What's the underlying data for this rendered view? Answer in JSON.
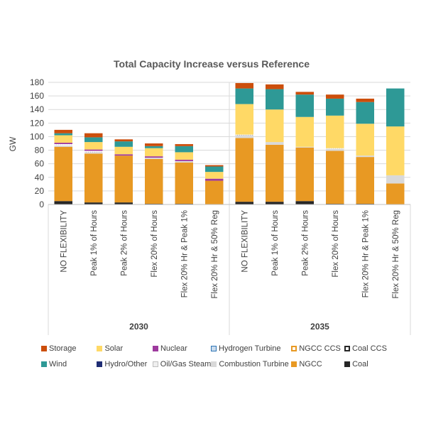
{
  "chart_data": {
    "type": "bar",
    "stacked": true,
    "title": "Total Capacity Increase versus Reference",
    "xlabel": "",
    "ylabel": "GW",
    "ylim": [
      0,
      180
    ],
    "yticks": [
      0,
      20,
      40,
      60,
      80,
      100,
      120,
      140,
      160,
      180
    ],
    "grid": true,
    "legend_position": "bottom",
    "groups": [
      {
        "label": "2030",
        "categories": [
          "NO FLEXIBILITY",
          "Peak 1% of Hours",
          "Peak 2% of Hours",
          "Flex 20% of Hours",
          "Flex 20% Hr & Peak 1%",
          "Flex 20% Hr & 50% Reg"
        ]
      },
      {
        "label": "2035",
        "categories": [
          "NO FLEXIBILITY",
          "Peak 1% of Hours",
          "Peak 2% of Hours",
          "Flex 20% of Hours",
          "Flex 20% Hr & Peak 1%",
          "Flex 20% Hr & 50% Reg"
        ]
      }
    ],
    "series": [
      {
        "name": "Coal",
        "color": "#262626",
        "pattern": "solid",
        "values": [
          5,
          3,
          3,
          1,
          1,
          0,
          4,
          4,
          5,
          1,
          1,
          0
        ]
      },
      {
        "name": "NGCC",
        "color": "#E89923",
        "pattern": "solid",
        "values": [
          80,
          72,
          69,
          66,
          61,
          35,
          94,
          84,
          79,
          78,
          69,
          31
        ]
      },
      {
        "name": "Combustion Turbine",
        "color": "#D9D9D9",
        "pattern": "solid",
        "values": [
          2,
          2,
          0,
          2,
          2,
          0,
          4,
          4,
          1,
          3,
          2,
          12
        ]
      },
      {
        "name": "Oil/Gas Steam",
        "color": "#BFBFBF",
        "pattern": "dotted",
        "values": [
          2,
          2,
          0,
          0,
          0,
          0,
          1,
          0,
          0,
          1,
          0,
          0
        ]
      },
      {
        "name": "Hydro/Other",
        "color": "#1F2D74",
        "pattern": "solid",
        "values": [
          0,
          0,
          0,
          0,
          0,
          0,
          0,
          0,
          0,
          0,
          0,
          0
        ]
      },
      {
        "name": "Nuclear",
        "color": "#9E3A9E",
        "pattern": "solid",
        "values": [
          2,
          2,
          2,
          2,
          2,
          3,
          0,
          0,
          0,
          0,
          0,
          0
        ]
      },
      {
        "name": "Hydrogen Turbine",
        "color": "#2E75B6",
        "pattern": "dotted",
        "values": [
          0,
          0,
          0,
          0,
          0,
          0,
          0,
          0,
          0,
          0,
          0,
          0
        ]
      },
      {
        "name": "NGCC CCS",
        "color": "#E89923",
        "pattern": "outline",
        "values": [
          0,
          0,
          0,
          0,
          0,
          0,
          0,
          0,
          0,
          0,
          0,
          0
        ]
      },
      {
        "name": "Coal CCS",
        "color": "#262626",
        "pattern": "outline",
        "values": [
          0,
          0,
          0,
          0,
          0,
          0,
          0,
          0,
          0,
          0,
          0,
          0
        ]
      },
      {
        "name": "Solar",
        "color": "#FFD966",
        "pattern": "solid",
        "values": [
          11,
          11,
          11,
          12,
          11,
          10,
          45,
          48,
          44,
          48,
          47,
          72
        ]
      },
      {
        "name": "Wind",
        "color": "#2E9996",
        "pattern": "solid",
        "values": [
          3,
          7,
          8,
          3,
          9,
          8,
          23,
          30,
          33,
          25,
          32,
          56
        ]
      },
      {
        "name": "Storage",
        "color": "#CC4E0B",
        "pattern": "solid",
        "values": [
          5,
          6,
          3,
          4,
          3,
          2,
          8,
          7,
          4,
          6,
          5,
          0
        ]
      }
    ],
    "legend": [
      [
        {
          "name": "Storage",
          "color": "#CC4E0B",
          "pattern": "solid"
        },
        {
          "name": "Solar",
          "color": "#FFD966",
          "pattern": "solid"
        },
        {
          "name": "Nuclear",
          "color": "#9E3A9E",
          "pattern": "solid"
        },
        {
          "name": "Hydrogen Turbine",
          "color": "#2E75B6",
          "pattern": "dotted"
        },
        {
          "name": "NGCC CCS",
          "color": "#E89923",
          "pattern": "outline"
        },
        {
          "name": "Coal CCS",
          "color": "#262626",
          "pattern": "outline"
        }
      ],
      [
        {
          "name": "Wind",
          "color": "#2E9996",
          "pattern": "solid"
        },
        {
          "name": "Hydro/Other",
          "color": "#1F2D74",
          "pattern": "solid"
        },
        {
          "name": "Oil/Gas Steam",
          "color": "#BFBFBF",
          "pattern": "dotted"
        },
        {
          "name": "Combustion Turbine",
          "color": "#D9D9D9",
          "pattern": "solid"
        },
        {
          "name": "NGCC",
          "color": "#E89923",
          "pattern": "solid"
        },
        {
          "name": "Coal",
          "color": "#262626",
          "pattern": "solid"
        }
      ]
    ]
  }
}
